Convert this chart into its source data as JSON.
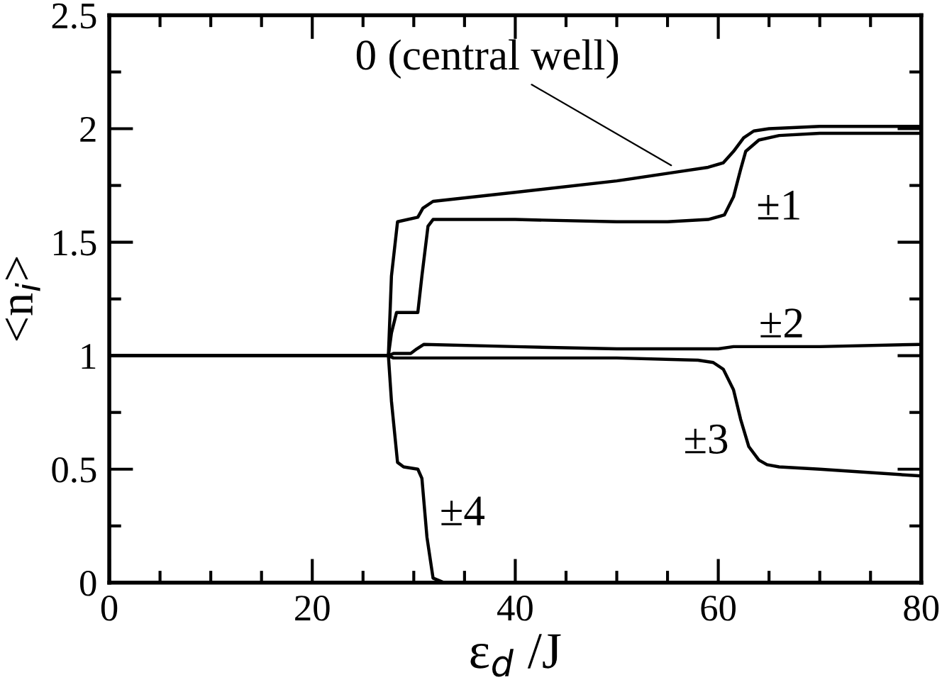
{
  "chart_data": {
    "type": "line",
    "xlabel": "ε$_{d}$ /J",
    "ylabel": "<n$_{i}$>",
    "xlim": [
      0,
      80
    ],
    "ylim": [
      0,
      2.5
    ],
    "xticks": [
      0,
      {
        "value": 5,
        "label": null
      },
      {
        "value": 10,
        "label": null
      },
      {
        "value": 15,
        "label": null
      },
      20,
      {
        "value": 25,
        "label": null
      },
      {
        "value": 30,
        "label": null
      },
      {
        "value": 35,
        "label": null
      },
      40,
      {
        "value": 45,
        "label": null
      },
      {
        "value": 50,
        "label": null
      },
      {
        "value": 55,
        "label": null
      },
      60,
      {
        "value": 65,
        "label": null
      },
      {
        "value": 70,
        "label": null
      },
      {
        "value": 75,
        "label": null
      },
      80
    ],
    "yticks": [
      0,
      {
        "value": 0.25,
        "label": null
      },
      0.5,
      {
        "value": 0.75,
        "label": null
      },
      1,
      {
        "value": 1.25,
        "label": null
      },
      1.5,
      {
        "value": 1.75,
        "label": null
      },
      2,
      {
        "value": 2.25,
        "label": null
      },
      2.5
    ],
    "grid": false,
    "legend": false,
    "marker": "none",
    "line_style": "solid",
    "series": [
      {
        "color": "#000000",
        "x": [
          0,
          27.5,
          27.8,
          28.4,
          30.4,
          30.9,
          31.9,
          40,
          50,
          56,
          59,
          60.5,
          61.5,
          62.5,
          63.5,
          65,
          70,
          80
        ],
        "values": [
          1,
          1,
          1.35,
          1.59,
          1.61,
          1.65,
          1.68,
          1.72,
          1.77,
          1.81,
          1.83,
          1.85,
          1.9,
          1.96,
          1.99,
          2.0,
          2.01,
          2.01
        ]
      },
      {
        "color": "#000000",
        "x": [
          0,
          27.5,
          27.8,
          28.3,
          30.4,
          30.8,
          31.4,
          31.9,
          40,
          50,
          55,
          59,
          60.6,
          61.5,
          62.2,
          62.7,
          64,
          66,
          70,
          80
        ],
        "values": [
          1,
          1,
          1.1,
          1.19,
          1.19,
          1.35,
          1.57,
          1.6,
          1.6,
          1.59,
          1.59,
          1.6,
          1.62,
          1.7,
          1.82,
          1.9,
          1.95,
          1.97,
          1.98,
          1.98
        ]
      },
      {
        "color": "#000000",
        "x": [
          0,
          27.5,
          28,
          29.7,
          30.3,
          31,
          40,
          50,
          60,
          61.5,
          62.5,
          64,
          70,
          80
        ],
        "values": [
          1,
          1,
          1.01,
          1.01,
          1.03,
          1.05,
          1.04,
          1.03,
          1.03,
          1.04,
          1.04,
          1.04,
          1.04,
          1.05
        ]
      },
      {
        "color": "#000000",
        "x": [
          0,
          27.5,
          28,
          40,
          50,
          58,
          59.5,
          60.5,
          61.5,
          62.2,
          63,
          64,
          64.8,
          66,
          70,
          80
        ],
        "values": [
          1,
          1,
          0.99,
          0.99,
          0.99,
          0.98,
          0.97,
          0.94,
          0.85,
          0.72,
          0.6,
          0.54,
          0.52,
          0.51,
          0.5,
          0.47
        ]
      },
      {
        "color": "#000000",
        "x": [
          0,
          27.5,
          27.8,
          28.4,
          29,
          30.4,
          30.8,
          31.3,
          31.9,
          33,
          50,
          80
        ],
        "values": [
          1,
          1,
          0.8,
          0.53,
          0.51,
          0.5,
          0.46,
          0.2,
          0.02,
          0,
          0,
          0
        ]
      }
    ],
    "annotations": [
      {
        "text": "0 (central well)",
        "x": 55.7,
        "y": 1.83
      },
      {
        "text": "±1",
        "x": 62.2,
        "y": 1.82
      },
      {
        "text": "±2",
        "x": 64,
        "y": 1.04
      },
      {
        "text": "±3",
        "x": 62.2,
        "y": 0.72
      },
      {
        "text": "±4",
        "x": 31,
        "y": 0.36
      }
    ]
  }
}
